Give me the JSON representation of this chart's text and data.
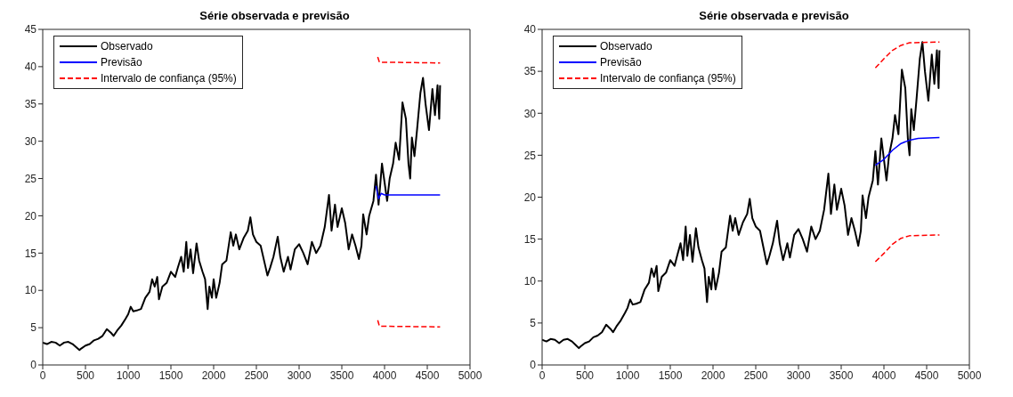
{
  "chart_data": [
    {
      "type": "line",
      "title": "Série observada e previsão",
      "xlim": [
        0,
        5000
      ],
      "xticks": [
        0,
        500,
        1000,
        1500,
        2000,
        2500,
        3000,
        3500,
        4000,
        4500,
        5000
      ],
      "ylim": [
        0,
        45
      ],
      "yticks": [
        0,
        5,
        10,
        15,
        20,
        25,
        30,
        35,
        40,
        45
      ],
      "grid": false,
      "legend": "top left",
      "series": [
        {
          "name": "Observado",
          "color": "#000000",
          "line_style": "solid",
          "x": [
            0,
            50,
            100,
            150,
            200,
            250,
            300,
            350,
            400,
            430,
            450,
            500,
            550,
            600,
            650,
            700,
            750,
            800,
            830,
            870,
            920,
            970,
            1000,
            1030,
            1060,
            1100,
            1150,
            1200,
            1250,
            1280,
            1310,
            1340,
            1360,
            1400,
            1450,
            1500,
            1550,
            1580,
            1620,
            1650,
            1680,
            1700,
            1730,
            1760,
            1800,
            1830,
            1870,
            1900,
            1930,
            1950,
            1980,
            2000,
            2030,
            2070,
            2100,
            2150,
            2200,
            2230,
            2260,
            2300,
            2350,
            2400,
            2430,
            2460,
            2500,
            2550,
            2600,
            2630,
            2660,
            2700,
            2750,
            2780,
            2820,
            2870,
            2900,
            2950,
            3000,
            3050,
            3100,
            3150,
            3200,
            3250,
            3300,
            3350,
            3380,
            3420,
            3450,
            3500,
            3540,
            3580,
            3620,
            3660,
            3700,
            3730,
            3750,
            3790,
            3820,
            3870,
            3900,
            3930,
            3970,
            4000,
            4030,
            4060,
            4100,
            4130,
            4170,
            4210,
            4250,
            4280,
            4300,
            4320,
            4350,
            4380,
            4420,
            4450,
            4480,
            4520,
            4560,
            4590,
            4620,
            4640,
            4650
          ],
          "values": [
            3,
            2.8,
            3.1,
            3,
            2.6,
            3,
            3.1,
            2.8,
            2.3,
            2,
            2.2,
            2.6,
            2.8,
            3.3,
            3.5,
            3.9,
            4.8,
            4.3,
            3.9,
            4.6,
            5.3,
            6.2,
            6.8,
            7.8,
            7.2,
            7.3,
            7.5,
            9,
            9.8,
            11.5,
            10.5,
            11.8,
            8.8,
            10.5,
            11,
            12.5,
            11.8,
            13,
            14.5,
            12.5,
            16.5,
            13,
            15.5,
            12.3,
            16.3,
            14,
            12.5,
            11.5,
            7.5,
            10.5,
            9,
            11.5,
            9,
            11,
            13.5,
            14,
            17.8,
            16,
            17.5,
            15.5,
            17,
            18,
            19.8,
            17.5,
            16.5,
            16,
            13.5,
            12,
            13,
            14.5,
            17.2,
            14.5,
            12.5,
            14.5,
            12.8,
            15.5,
            16.2,
            15,
            13.5,
            16.5,
            15,
            16,
            18.5,
            22.8,
            18,
            21.5,
            18.5,
            21,
            19,
            15.5,
            17.5,
            16,
            14.2,
            16,
            20.2,
            17.5,
            20,
            22,
            25.5,
            21.5,
            27,
            24.5,
            22,
            25,
            27,
            29.8,
            27.5,
            35.2,
            33,
            27,
            25,
            30.5,
            28,
            31.5,
            36.5,
            38.5,
            35,
            31.5,
            37,
            33.5,
            37.5,
            33,
            37.5
          ]
        },
        {
          "name": "Previsão",
          "color": "#0000ff",
          "line_style": "solid",
          "x": [
            3900,
            3930,
            3960,
            4000,
            4650
          ],
          "values": [
            24,
            22.3,
            23,
            22.8,
            22.8
          ]
        },
        {
          "name": "Intervalo de confiança (95%)",
          "color": "#ff0000",
          "line_style": "dashed",
          "x": [
            3920,
            3940,
            4650
          ],
          "values": [
            41.3,
            40.6,
            40.5
          ]
        },
        {
          "color": "#ff0000",
          "line_style": "dashed",
          "x": [
            3920,
            3940,
            4650
          ],
          "values": [
            6,
            5.2,
            5.1
          ]
        }
      ]
    },
    {
      "type": "line",
      "title": "Série observada e previsão",
      "xlim": [
        0,
        5000
      ],
      "xticks": [
        0,
        500,
        1000,
        1500,
        2000,
        2500,
        3000,
        3500,
        4000,
        4500,
        5000
      ],
      "ylim": [
        0,
        40
      ],
      "yticks": [
        0,
        5,
        10,
        15,
        20,
        25,
        30,
        35,
        40
      ],
      "grid": false,
      "legend": "top left",
      "series": [
        {
          "name": "Observado",
          "color": "#000000",
          "line_style": "solid",
          "x": [
            0,
            50,
            100,
            150,
            200,
            250,
            300,
            350,
            400,
            430,
            450,
            500,
            550,
            600,
            650,
            700,
            750,
            800,
            830,
            870,
            920,
            970,
            1000,
            1030,
            1060,
            1100,
            1150,
            1200,
            1250,
            1280,
            1310,
            1340,
            1360,
            1400,
            1450,
            1500,
            1550,
            1580,
            1620,
            1650,
            1680,
            1700,
            1730,
            1760,
            1800,
            1830,
            1870,
            1900,
            1930,
            1950,
            1980,
            2000,
            2030,
            2070,
            2100,
            2150,
            2200,
            2230,
            2260,
            2300,
            2350,
            2400,
            2430,
            2460,
            2500,
            2550,
            2600,
            2630,
            2660,
            2700,
            2750,
            2780,
            2820,
            2870,
            2900,
            2950,
            3000,
            3050,
            3100,
            3150,
            3200,
            3250,
            3300,
            3350,
            3380,
            3420,
            3450,
            3500,
            3540,
            3580,
            3620,
            3660,
            3700,
            3730,
            3750,
            3790,
            3820,
            3870,
            3900,
            3930,
            3970,
            4000,
            4030,
            4060,
            4100,
            4130,
            4170,
            4210,
            4250,
            4280,
            4300,
            4320,
            4350,
            4380,
            4420,
            4450,
            4480,
            4520,
            4560,
            4590,
            4620,
            4640,
            4650
          ],
          "values": [
            3,
            2.8,
            3.1,
            3,
            2.6,
            3,
            3.1,
            2.8,
            2.3,
            2,
            2.2,
            2.6,
            2.8,
            3.3,
            3.5,
            3.9,
            4.8,
            4.3,
            3.9,
            4.6,
            5.3,
            6.2,
            6.8,
            7.8,
            7.2,
            7.3,
            7.5,
            9,
            9.8,
            11.5,
            10.5,
            11.8,
            8.8,
            10.5,
            11,
            12.5,
            11.8,
            13,
            14.5,
            12.5,
            16.5,
            13,
            15.5,
            12.3,
            16.3,
            14,
            12.5,
            11.5,
            7.5,
            10.5,
            9,
            11.5,
            9,
            11,
            13.5,
            14,
            17.8,
            16,
            17.5,
            15.5,
            17,
            18,
            19.8,
            17.5,
            16.5,
            16,
            13.5,
            12,
            13,
            14.5,
            17.2,
            14.5,
            12.5,
            14.5,
            12.8,
            15.5,
            16.2,
            15,
            13.5,
            16.5,
            15,
            16,
            18.5,
            22.8,
            18,
            21.5,
            18.5,
            21,
            19,
            15.5,
            17.5,
            16,
            14.2,
            16,
            20.2,
            17.5,
            20,
            22,
            25.5,
            21.5,
            27,
            24.5,
            22,
            25,
            27,
            29.8,
            27.5,
            35.2,
            33,
            27,
            25,
            30.5,
            28,
            31.5,
            36.5,
            38.5,
            35,
            31.5,
            37,
            33.5,
            37.5,
            33,
            37.5
          ]
        },
        {
          "name": "Previsão",
          "color": "#0000ff",
          "line_style": "solid",
          "x": [
            3900,
            4000,
            4100,
            4200,
            4300,
            4400,
            4650
          ],
          "values": [
            23.8,
            24.5,
            25.6,
            26.4,
            26.8,
            27,
            27.1
          ]
        },
        {
          "name": "Intervalo de confiança (95%)",
          "color": "#ff0000",
          "line_style": "dashed",
          "x": [
            3900,
            4000,
            4100,
            4200,
            4300,
            4650
          ],
          "values": [
            35.4,
            36.5,
            37.5,
            38.1,
            38.4,
            38.5
          ]
        },
        {
          "color": "#ff0000",
          "line_style": "dashed",
          "x": [
            3900,
            4000,
            4100,
            4200,
            4300,
            4650
          ],
          "values": [
            12.3,
            13.3,
            14.4,
            15.1,
            15.4,
            15.5
          ]
        }
      ]
    }
  ]
}
